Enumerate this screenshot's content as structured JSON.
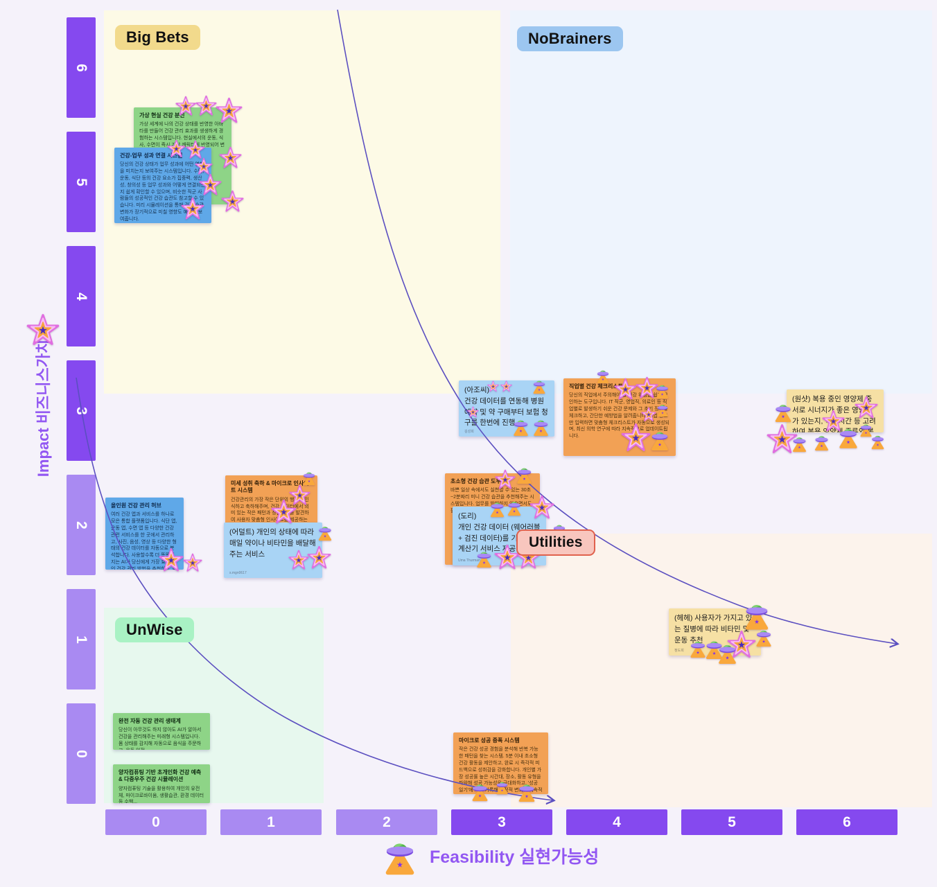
{
  "board": {
    "y_axis": {
      "title": "Impact 비즈니스가치",
      "ticks": [
        "6",
        "5",
        "4",
        "3",
        "2",
        "1",
        "0"
      ]
    },
    "x_axis": {
      "title": "Feasibility 실현가능성",
      "ticks": [
        "0",
        "1",
        "2",
        "3",
        "4",
        "5",
        "6"
      ]
    },
    "quadrants": [
      {
        "id": "bigbets",
        "label": "Big Bets",
        "bg": "#f2da8c"
      },
      {
        "id": "nobrainers",
        "label": "NoBrainers",
        "bg": "#9cc6f0"
      },
      {
        "id": "unwise",
        "label": "UnWise",
        "bg": "#a9f2c4"
      },
      {
        "id": "utilities",
        "label": "Utilities",
        "bg": "#f8c6be",
        "border": "#e0614d"
      }
    ],
    "colors": {
      "axis_dark": "#8549ef",
      "axis_light": "#a98af2",
      "axis_title": "#9257f2",
      "curve": "#5b4fc0",
      "note_green": "#8ed487",
      "note_blue": "#5fa8e8",
      "note_lightblue": "#a9d4f5",
      "note_orange": "#f2a155",
      "note_yellow": "#f6e0a4"
    },
    "stickers": {
      "vote_icons": [
        "star-sticker",
        "ufo-sticker"
      ]
    },
    "notes": [
      {
        "id": "vr",
        "color": "green",
        "title": "가상 현실 건강 분신",
        "body": "가상 세계에 나의 건강 상태를 반영한 아바타를 만들어 건강 관리 효과를 생생하게 경험하는 시스템입니다. 현실에서의 운동, 식사, 수면이 즉시 가상 캐릭터에 반영되어 변화를 눈으로 확인"
      },
      {
        "id": "worklink",
        "color": "blue",
        "title": "건강-업무 성과 연결 시스템",
        "body": "당신의 건강 상태가 업무 성과에 어떤 영향을 미치는지 보여주는 시스템입니다. 수면, 운동, 식단 등의 건강 요소가 집중력, 생산성, 창의성 등 업무 성과와 어떻게 연결되는지 쉽게 확인할 수 있으며, 비슷한 직군 사람들의 성공적인 건강 습관도 참고할 수 있습니다. 미리 시뮬레이션을 통해 건강 습관 변화가 장기적으로 미칠 영향도 예측해 보여줍니다."
      },
      {
        "id": "ajossi",
        "color": "lblue",
        "body": "(아조씨)\n건강 데이터를 연동해 병원 예약 및 약 구매부터 보험 청구를 한번에 진행",
        "author": "김성희"
      },
      {
        "id": "jobcheck",
        "color": "orange",
        "title": "직업별 건강 체크리스트",
        "body": "당신의 직업에서 주의해야 할 건강 위험을 쉽게 확인하는 도구입니다. IT 직군, 영업직, 의료인 등 직업별로 발생하기 쉬운 건강 문제와 그 초기 징후를 체크하고, 간단한 예방법을 알려줍니다. 직업 정보만 입력하면 맞춤형 체크리스트가 자동으로 생성되며, 최신 의학 연구에 따라 지속적으로 업데이트됩니다."
      },
      {
        "id": "oneshot",
        "color": "yellow",
        "body": "(원샷) 복용 중인 영양제 중 서로 시너지가 좋은 영양제가 있는지, 식사시간 등 고려하여 복용 영양제 종류와 복용 시간 추천"
      },
      {
        "id": "microinsight",
        "color": "orange",
        "title": "미세 성취 축하 & 마이크로 인사이트 시스템",
        "body": "건강관리의 가장 작은 단위의 행동도 인식하고 축하해주며, 건강 데이터에서 의미 있는 작은 패턴과 상관관계를 발견하여 사용자 맞춤형 인사이트를 제공하는 통합 시스템. 예를 들어 '오늘 계단 3층 오르기' 같은 작은 목표를 달성하..."
      },
      {
        "id": "adult",
        "color": "lblue",
        "body": "(어덜트) 개인의 상태에 따라 매일 약이나 비타민을 배달해주는 서비스",
        "author": "s.mgn0617"
      },
      {
        "id": "allinone",
        "color": "blue",
        "title": "올인원 건강 관리 허브",
        "body": "여러 건강 앱과 서비스를 하나로 모은 통합 플랫폼입니다. 식단 앱, 운동 앱, 수면 앱 등 다양한 건강 관련 서비스를 한 곳에서 관리하고, 사진, 음성, 영상 등 다양한 형태의 건강 데이터를 자동으로 분석합니다. 사용할수록 더 똑똑해지는 AI가 당신에게 가장 효과적인 건강 관리 방법을 추천하고, 다양한 건강 기기와 연동됩니다."
      },
      {
        "id": "microhabit",
        "color": "orange",
        "title": "초소형 건강 습관 도우미",
        "body": "바쁜 일상 속에서도 실천할 수 있는 30초~2분짜리 미니 건강 습관을 추천해주는 시스템입니다. 업무를 방해하지 않으면서도 필요한 건강 행동을 제안합니다."
      },
      {
        "id": "dori",
        "color": "lblue",
        "body": "(도리)\n개인 건강 데이터 (웨어러블 + 검진 데이터)를 기반으로 계산기 서비스 제공",
        "author": "Uma Thurman"
      },
      {
        "id": "hehe",
        "color": "yellow",
        "body": "(헤헤) 사용자가 가지고 있는 질병에 따라 비타민 및 운동 추천",
        "author": "정도희"
      },
      {
        "id": "autoeco",
        "color": "green",
        "title": "완전 자동 건강 관리 생태계",
        "body": "당신이 아무것도 하지 않아도 AI가 알아서 건강을 관리해주는 미래형 시스템입니다. 몸 상태를 감지해 자동으로 음식을 주문하고, 운동 일정..."
      },
      {
        "id": "quantum",
        "color": "green",
        "title": "양자컴퓨팅 기반 초개인화 건강 예측 & 다중우주 건강 시뮬레이션",
        "body": "양자컴퓨팅 기술을 활용하여 개인의 유전체, 마이크로바이옴, 생활습관, 환경 데이터 등 수백..."
      },
      {
        "id": "microsuccess",
        "color": "orange",
        "title": "마이크로 성공 증폭 시스템",
        "body": "작은 건강 성공 경험을 분석해 반복 가능한 패턴을 찾는 시스템. 5분 이내 초소형 건강 활동을 제안하고, 완료 시 즉각적 피드백으로 성취감을 강화합니다. 개인별 가장 성공률 높은 시간대, 장소, 활동 유형을 파악해 성공 가능성을 극대화하고, '성공 일기'에 자동 기록해 긍정적 변화를 지속적으로 확인할 수 있게 합니다."
      }
    ]
  }
}
